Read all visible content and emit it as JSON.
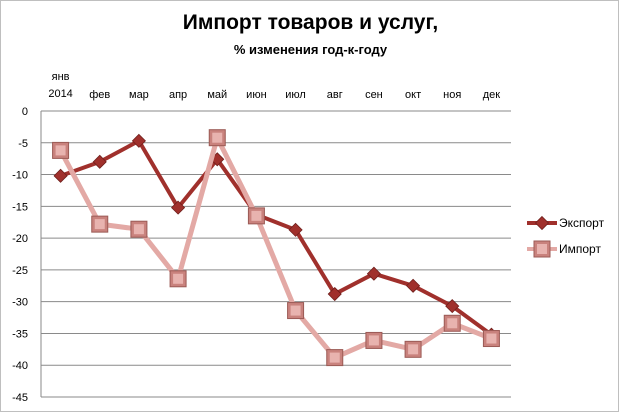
{
  "chart_data": {
    "type": "line",
    "title": "Импорт товаров и услуг,",
    "subtitle": "% изменения год-к-году",
    "categories": [
      "янв\n2014",
      "фев",
      "мар",
      "апр",
      "май",
      "июн",
      "июл",
      "авг",
      "сен",
      "окт",
      "ноя",
      "дек"
    ],
    "ylim": [
      -45,
      0
    ],
    "yticks": [
      0,
      -5,
      -10,
      -15,
      -20,
      -25,
      -30,
      -35,
      -40,
      -45
    ],
    "xaxis_position": "top",
    "grid": true,
    "legend": "right",
    "series": [
      {
        "name": "Экспорт",
        "color": "#a0302c",
        "marker": "diamond",
        "values": [
          -10.2,
          -8.0,
          -4.7,
          -15.2,
          -7.6,
          -16.3,
          -18.7,
          -28.8,
          -25.6,
          -27.5,
          -30.7,
          -35.2
        ]
      },
      {
        "name": "Импорт",
        "color": "#e3a9a5",
        "marker": "square",
        "values": [
          -6.2,
          -17.8,
          -18.6,
          -26.4,
          -4.2,
          -16.5,
          -31.4,
          -38.8,
          -36.1,
          -37.5,
          -33.4,
          -35.8
        ]
      }
    ]
  }
}
